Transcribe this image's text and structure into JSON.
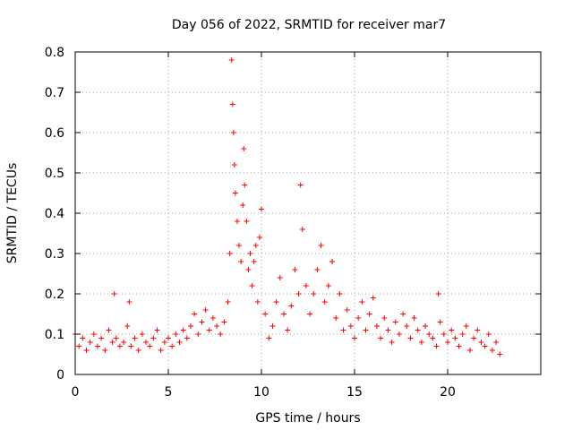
{
  "chart_data": {
    "type": "scatter",
    "title": "Day 056 of 2022, SRMTID for receiver mar7",
    "xlabel": "GPS time / hours",
    "ylabel": "SRMTID / TECUs",
    "xlim": [
      0,
      25
    ],
    "ylim": [
      0,
      0.8
    ],
    "xticks": [
      0,
      5,
      10,
      15,
      20
    ],
    "yticks": [
      0,
      0.1,
      0.2,
      0.3,
      0.4,
      0.5,
      0.6,
      0.7,
      0.8
    ],
    "xtick_labels": [
      "0",
      "5",
      "10",
      "15",
      "20"
    ],
    "ytick_labels": [
      "0",
      "0.1",
      "0.2",
      "0.3",
      "0.4",
      "0.5",
      "0.6",
      "0.7",
      "0.8"
    ],
    "grid": true,
    "marker": "plus",
    "color": "#ff0000",
    "series": [
      {
        "name": "SRMTID",
        "x": [
          0.0,
          0.2,
          0.4,
          0.6,
          0.8,
          1.0,
          1.2,
          1.4,
          1.6,
          1.8,
          2.0,
          2.1,
          2.2,
          2.4,
          2.6,
          2.8,
          2.9,
          3.0,
          3.2,
          3.4,
          3.6,
          3.8,
          4.0,
          4.2,
          4.4,
          4.6,
          4.8,
          5.0,
          5.2,
          5.4,
          5.6,
          5.8,
          6.0,
          6.2,
          6.4,
          6.6,
          6.8,
          7.0,
          7.2,
          7.4,
          7.6,
          7.8,
          8.0,
          8.2,
          8.3,
          8.4,
          8.45,
          8.5,
          8.55,
          8.6,
          8.7,
          8.8,
          8.9,
          9.0,
          9.05,
          9.1,
          9.2,
          9.3,
          9.4,
          9.5,
          9.6,
          9.7,
          9.8,
          9.9,
          10.0,
          10.2,
          10.4,
          10.6,
          10.8,
          11.0,
          11.2,
          11.4,
          11.6,
          11.8,
          12.0,
          12.1,
          12.2,
          12.4,
          12.6,
          12.8,
          13.0,
          13.2,
          13.4,
          13.6,
          13.8,
          14.0,
          14.2,
          14.4,
          14.6,
          14.8,
          15.0,
          15.2,
          15.4,
          15.6,
          15.8,
          16.0,
          16.2,
          16.4,
          16.6,
          16.8,
          17.0,
          17.2,
          17.4,
          17.6,
          17.8,
          18.0,
          18.2,
          18.4,
          18.6,
          18.8,
          19.0,
          19.2,
          19.4,
          19.5,
          19.6,
          19.8,
          20.0,
          20.2,
          20.4,
          20.6,
          20.8,
          21.0,
          21.2,
          21.4,
          21.6,
          21.8,
          22.0,
          22.2,
          22.4,
          22.6,
          22.8
        ],
        "y": [
          0.1,
          0.07,
          0.09,
          0.06,
          0.08,
          0.1,
          0.07,
          0.09,
          0.06,
          0.11,
          0.08,
          0.2,
          0.09,
          0.07,
          0.08,
          0.12,
          0.18,
          0.07,
          0.09,
          0.06,
          0.1,
          0.08,
          0.07,
          0.09,
          0.11,
          0.06,
          0.08,
          0.09,
          0.07,
          0.1,
          0.08,
          0.11,
          0.09,
          0.12,
          0.15,
          0.1,
          0.13,
          0.16,
          0.11,
          0.14,
          0.12,
          0.1,
          0.13,
          0.18,
          0.3,
          0.78,
          0.67,
          0.6,
          0.52,
          0.45,
          0.38,
          0.32,
          0.28,
          0.42,
          0.56,
          0.47,
          0.38,
          0.26,
          0.3,
          0.22,
          0.28,
          0.32,
          0.18,
          0.34,
          0.41,
          0.15,
          0.09,
          0.12,
          0.18,
          0.24,
          0.15,
          0.11,
          0.17,
          0.26,
          0.2,
          0.47,
          0.36,
          0.22,
          0.15,
          0.2,
          0.26,
          0.32,
          0.18,
          0.22,
          0.28,
          0.14,
          0.2,
          0.11,
          0.16,
          0.12,
          0.09,
          0.14,
          0.18,
          0.11,
          0.15,
          0.19,
          0.12,
          0.09,
          0.14,
          0.11,
          0.08,
          0.13,
          0.1,
          0.15,
          0.12,
          0.09,
          0.14,
          0.11,
          0.08,
          0.12,
          0.1,
          0.09,
          0.07,
          0.2,
          0.13,
          0.1,
          0.08,
          0.11,
          0.09,
          0.07,
          0.1,
          0.12,
          0.06,
          0.09,
          0.11,
          0.08,
          0.07,
          0.1,
          0.06,
          0.08,
          0.05
        ]
      }
    ]
  }
}
